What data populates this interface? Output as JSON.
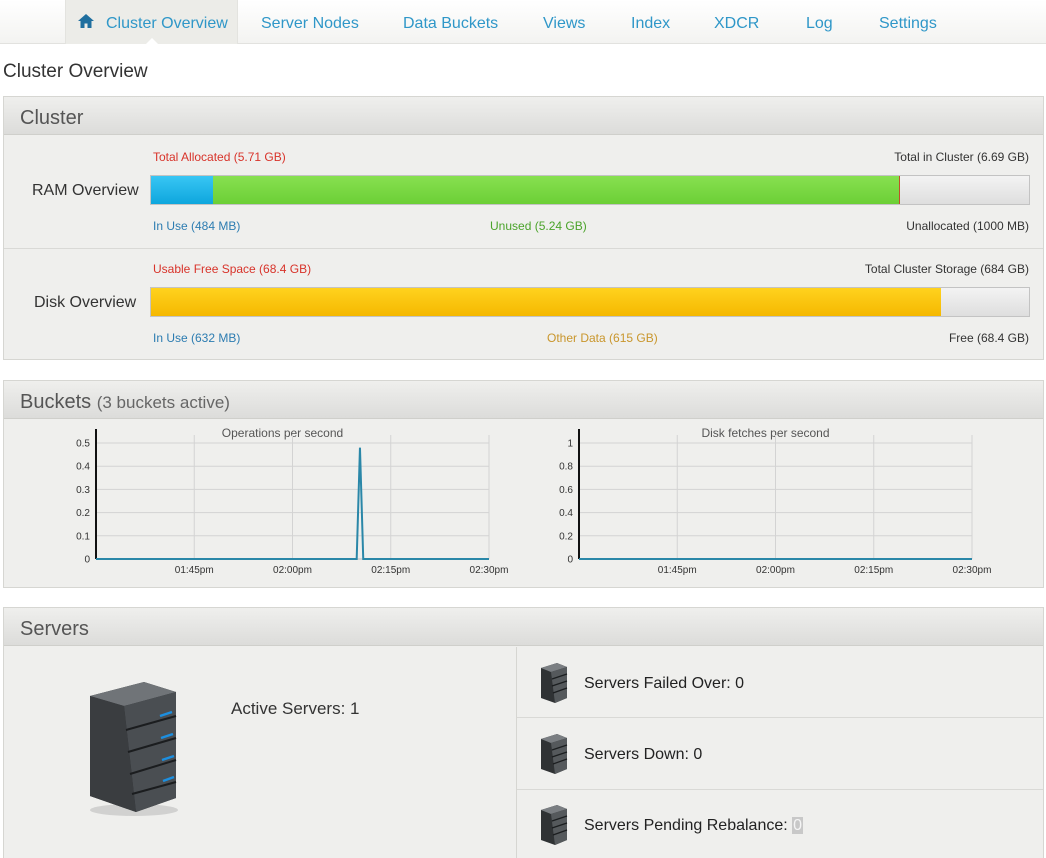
{
  "nav": {
    "items": [
      {
        "label": "Cluster Overview",
        "active": true
      },
      {
        "label": "Server Nodes"
      },
      {
        "label": "Data Buckets"
      },
      {
        "label": "Views"
      },
      {
        "label": "Index"
      },
      {
        "label": "XDCR"
      },
      {
        "label": "Log"
      },
      {
        "label": "Settings"
      }
    ]
  },
  "page_title": "Cluster Overview",
  "cluster": {
    "title": "Cluster",
    "ram": {
      "label": "RAM Overview",
      "total_allocated": "Total Allocated (5.71 GB)",
      "total_in_cluster": "Total in Cluster (6.69 GB)",
      "in_use": "In Use (484 MB)",
      "unused": "Unused (5.24 GB)",
      "unallocated": "Unallocated (1000 MB)",
      "in_use_fraction": 0.0707,
      "allocated_fraction": 0.8535
    },
    "disk": {
      "label": "Disk Overview",
      "usable_free": "Usable Free Space (68.4 GB)",
      "total_storage": "Total Cluster Storage (684 GB)",
      "in_use": "In Use (632 MB)",
      "other_data": "Other Data (615 GB)",
      "free": "Free (68.4 GB)",
      "used_fraction": 0.9
    }
  },
  "buckets": {
    "title": "Buckets",
    "subtitle": "(3 buckets active)"
  },
  "chart_data": [
    {
      "type": "line",
      "title": "Operations per second",
      "x_ticks": [
        "01:45pm",
        "02:00pm",
        "02:15pm",
        "02:30pm"
      ],
      "y_ticks": [
        "0",
        "0.1",
        "0.2",
        "0.3",
        "0.4",
        "0.5"
      ],
      "ylim": [
        0,
        0.5
      ],
      "x_range_minutes": [
        -15,
        45
      ],
      "series": [
        {
          "x": [
            -15,
            24.8,
            25.3,
            25.8,
            45
          ],
          "y": [
            0,
            0,
            0.48,
            0,
            0
          ],
          "color": "#2a87a8"
        }
      ],
      "grid": true
    },
    {
      "type": "line",
      "title": "Disk fetches per second",
      "x_ticks": [
        "01:45pm",
        "02:00pm",
        "02:15pm",
        "02:30pm"
      ],
      "y_ticks": [
        "0",
        "0.2",
        "0.4",
        "0.6",
        "0.8",
        "1"
      ],
      "ylim": [
        0,
        1
      ],
      "x_range_minutes": [
        -15,
        45
      ],
      "series": [
        {
          "x": [
            -15,
            45
          ],
          "y": [
            0,
            0
          ],
          "color": "#2a87a8"
        }
      ],
      "grid": true
    }
  ],
  "servers": {
    "title": "Servers",
    "active": "Active Servers: 1",
    "failed_over": "Servers Failed Over: 0",
    "down": "Servers Down: 0",
    "pending_label": "Servers Pending Rebalance: ",
    "pending_value": "0"
  }
}
